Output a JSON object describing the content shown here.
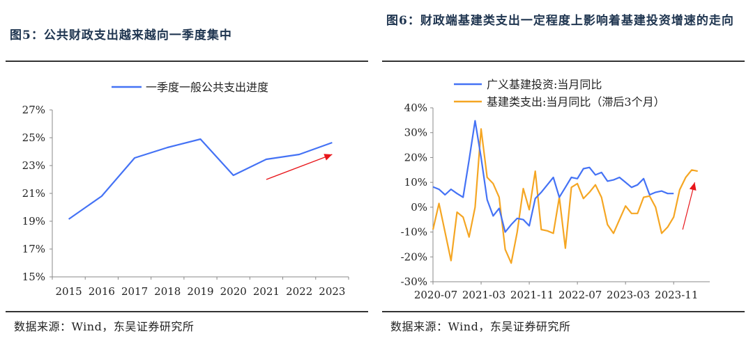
{
  "left": {
    "title": "图5：公共财政支出越来越向一季度集中",
    "source": "数据来源：Wind，东吴证券研究所",
    "chart_data": {
      "type": "line",
      "categories": [
        "2015",
        "2016",
        "2017",
        "2018",
        "2019",
        "2020",
        "2021",
        "2022",
        "2023"
      ],
      "series": [
        {
          "name": "一季度一般公共支出进度",
          "color": "#4472f5",
          "values": [
            19.15,
            20.8,
            23.55,
            24.3,
            24.9,
            22.3,
            23.45,
            23.8,
            24.65
          ]
        }
      ],
      "y_ticks": [
        "27%",
        "25%",
        "23%",
        "21%",
        "19%",
        "17%",
        "15%"
      ],
      "ylim": [
        15,
        27
      ],
      "legend_position": "top",
      "grid": false,
      "annotation": {
        "type": "arrow",
        "color": "#e8161b",
        "from": [
          6,
          22.0
        ],
        "to": [
          8,
          23.8
        ]
      }
    }
  },
  "right": {
    "title": "图6：财政端基建类支出一定程度上影响着基建投资增速的走向",
    "source": "数据来源：Wind，东吴证券研究所",
    "chart_data": {
      "type": "line",
      "x_ticks": [
        "2020-07",
        "2021-03",
        "2021-11",
        "2022-07",
        "2023-03",
        "2023-11"
      ],
      "x_tick_index": [
        0,
        8,
        16,
        24,
        32,
        40
      ],
      "y_ticks": [
        "40%",
        "30%",
        "20%",
        "10%",
        "0%",
        "-10%",
        "-20%",
        "-30%"
      ],
      "ylim": [
        -30,
        40
      ],
      "legend_position": "top-left",
      "grid": false,
      "series": [
        {
          "name": "广义基建投资:当月同比",
          "color": "#4472f5",
          "values": [
            8.2,
            7.2,
            5,
            7.2,
            5.5,
            4,
            19,
            34.8,
            20,
            3,
            -3.5,
            -0.5,
            -10,
            -7,
            -4.5,
            -5,
            -7.5,
            3.5,
            6,
            9,
            12,
            4,
            8,
            12,
            11.5,
            15.5,
            16,
            13,
            14,
            10.5,
            11,
            12,
            10,
            8,
            9,
            11.5,
            5,
            6,
            6.5,
            5.5,
            5.5
          ]
        },
        {
          "name": "基建类支出:当月同比（滞后3个月）",
          "color": "#f5a623",
          "values": [
            -9,
            1.5,
            -10,
            -21.5,
            -2,
            -4,
            -12,
            0,
            31.5,
            12,
            9.5,
            4,
            -17,
            -22.5,
            -10,
            7.5,
            -1,
            14.5,
            -9,
            -9.5,
            -10.5,
            4,
            -16.5,
            8,
            9.5,
            3.5,
            6,
            9,
            4,
            -7,
            -10.5,
            -5,
            0.5,
            -2.5,
            -2.5,
            4,
            4.5,
            0,
            -10.5,
            -8,
            -4,
            7,
            12,
            15,
            14.5
          ]
        }
      ],
      "annotation": {
        "type": "arrow",
        "color": "#e8161b",
        "from": [
          41.5,
          -9
        ],
        "to": [
          43.5,
          10
        ]
      }
    }
  }
}
